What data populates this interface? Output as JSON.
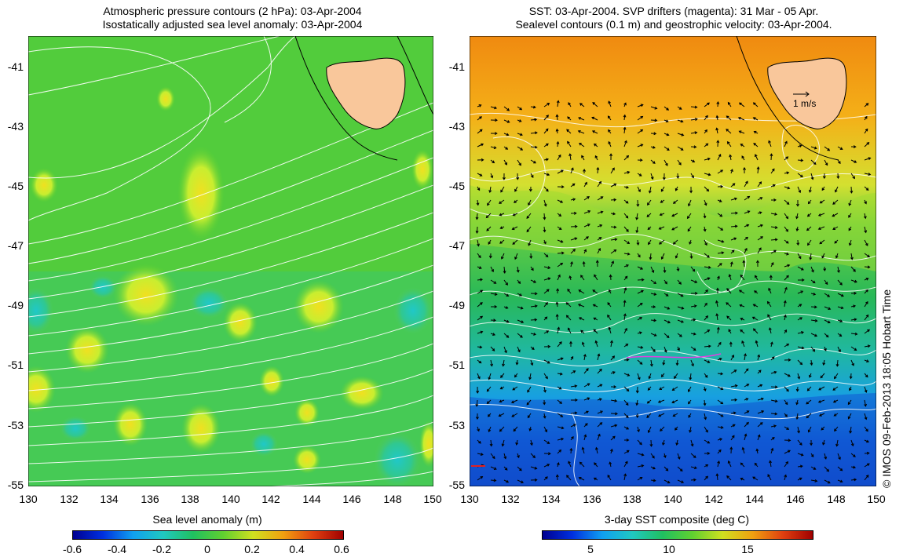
{
  "left_panel": {
    "title_line1": "Atmospheric pressure contours (2 hPa): 03-Apr-2004",
    "title_line2": "Isostatically adjusted sea level anomaly: 03-Apr-2004",
    "yticks": [
      "-41",
      "-43",
      "-45",
      "-47",
      "-49",
      "-51",
      "-53",
      "-55"
    ],
    "xticks": [
      "130",
      "132",
      "134",
      "136",
      "138",
      "140",
      "142",
      "144",
      "146",
      "148",
      "150"
    ],
    "colorbar_title": "Sea level anomaly (m)",
    "colorbar_labels": [
      "-0.6",
      "-0.4",
      "-0.2",
      "0",
      "0.2",
      "0.4",
      "0.6"
    ]
  },
  "right_panel": {
    "title_line1": "SST: 03-Apr-2004. SVP drifters (magenta): 31 Mar - 05 Apr.",
    "title_line2": "Sealevel contours (0.1 m) and geostrophic velocity: 03-Apr-2004.",
    "yticks": [
      "-41",
      "-43",
      "-45",
      "-47",
      "-49",
      "-51",
      "-53",
      "-55"
    ],
    "xticks": [
      "130",
      "132",
      "134",
      "136",
      "138",
      "140",
      "142",
      "144",
      "146",
      "148",
      "150"
    ],
    "velocity_scale_label": "1 m/s",
    "colorbar_title": "3-day SST composite (deg C)",
    "colorbar_labels": [
      "5",
      "10",
      "15"
    ]
  },
  "credit": "© IMOS 09-Feb-2013 18:05 Hobart Time",
  "colors": {
    "land": "#f9c79b",
    "pressure_contour": "#ffffff",
    "drifter": "#e040e0"
  }
}
